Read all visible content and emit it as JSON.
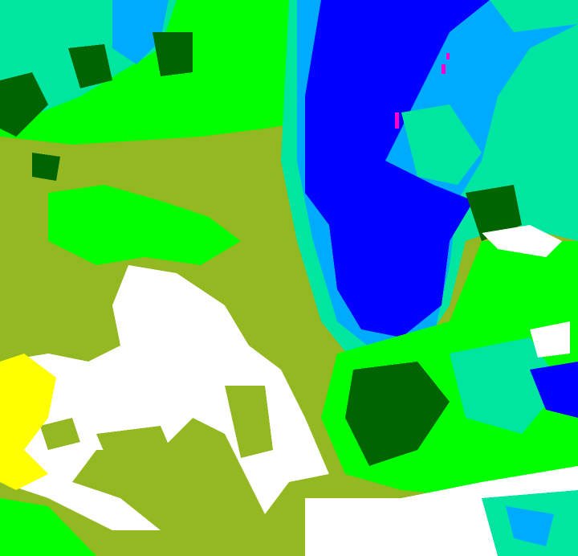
{
  "palette": {
    "olive": "#94b822",
    "bright_green": "#00ff00",
    "dark_green": "#006400",
    "teal": "#00e6a0",
    "light_blue": "#00aaff",
    "blue": "#0000ff",
    "white": "#ffffff",
    "yellow": "#ffff00",
    "magenta": "#ff00cc"
  }
}
